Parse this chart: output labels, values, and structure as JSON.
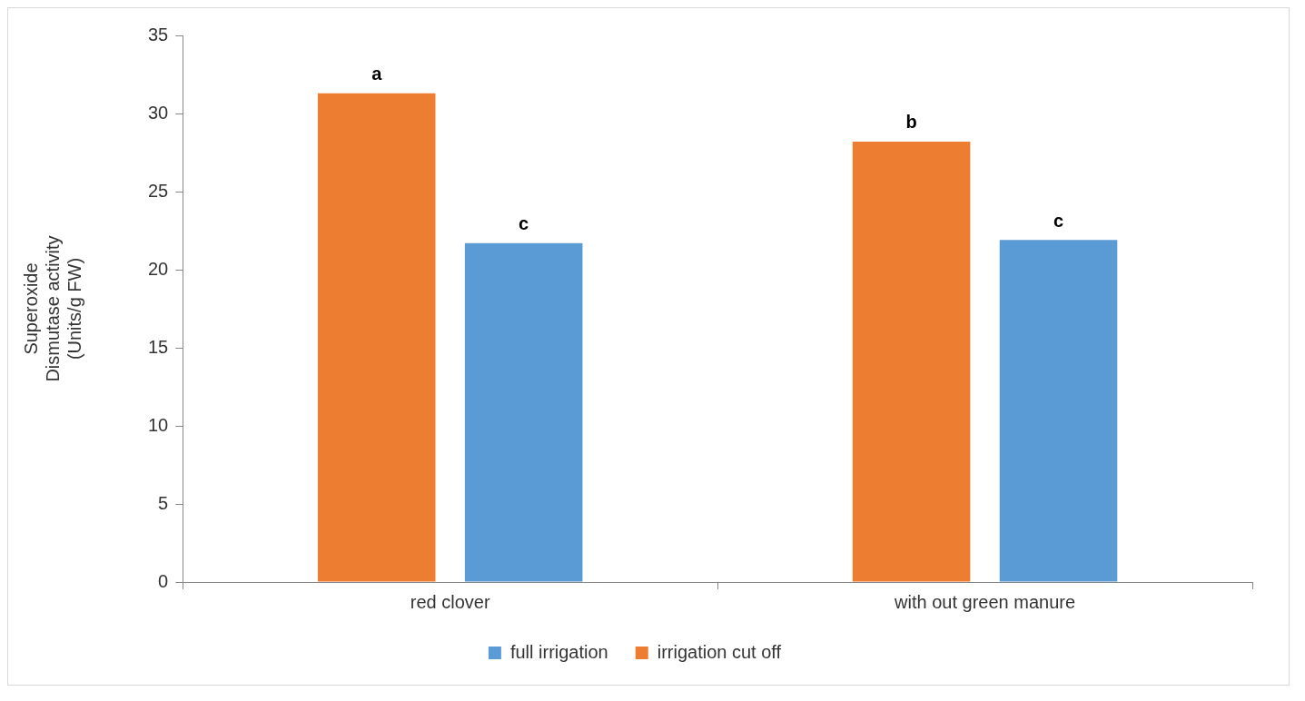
{
  "chart_data": {
    "type": "bar",
    "ylabel": "Superoxide Dismutase activity (Units/g FW)",
    "categories": [
      "red clover",
      "with out green manure"
    ],
    "series": [
      {
        "name": "irrigation cut off",
        "color": "#ed7d31",
        "values": [
          31.3,
          28.2
        ]
      },
      {
        "name": "full irrigation",
        "color": "#5b9bd5",
        "values": [
          21.7,
          21.9
        ]
      }
    ],
    "ylim": [
      0,
      35
    ],
    "yticks": [
      0,
      5,
      10,
      15,
      20,
      25,
      30,
      35
    ],
    "grid": false,
    "legend": "bottom",
    "annotations": [
      "a",
      "c",
      "b",
      "c"
    ]
  }
}
